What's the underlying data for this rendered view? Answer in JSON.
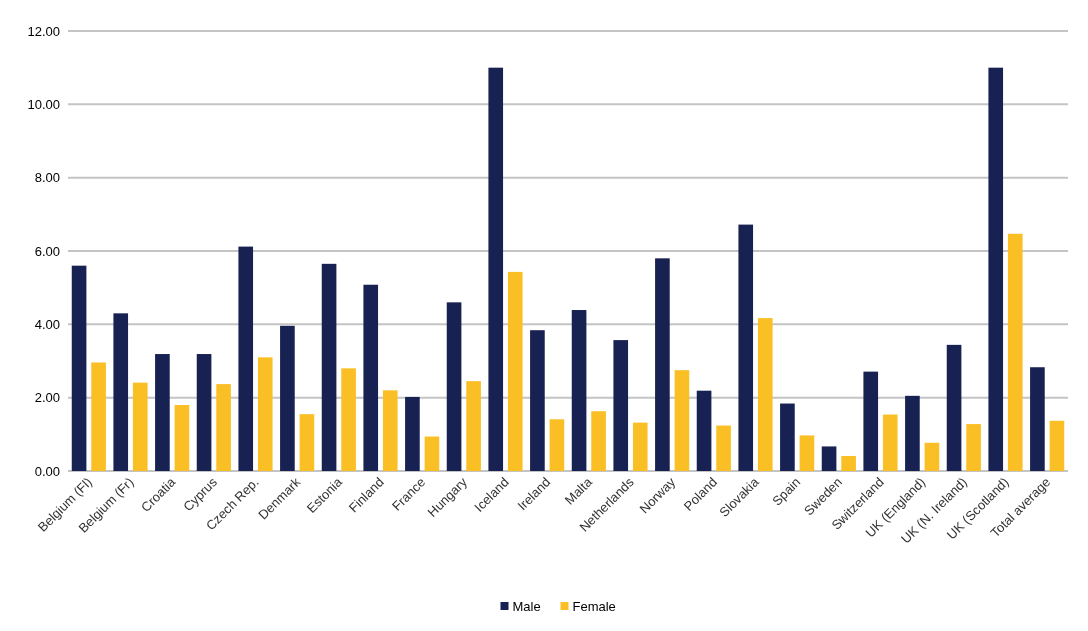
{
  "chart_data": {
    "type": "bar",
    "categories": [
      "Belgium (Fl)",
      "Belgium (Fr)",
      "Croatia",
      "Cyprus",
      "Czech Rep.",
      "Denmark",
      "Estonia",
      "Finland",
      "France",
      "Hungary",
      "Iceland",
      "Ireland",
      "Malta",
      "Netherlands",
      "Norway",
      "Poland",
      "Slovakia",
      "Spain",
      "Sweden",
      "Switzerland",
      "UK (England)",
      "UK (N. Ireland)",
      "UK (Scotland)",
      "Total average"
    ],
    "series": [
      {
        "name": "Male",
        "color": "#172152",
        "values": [
          5.6,
          4.3,
          3.19,
          3.19,
          6.12,
          3.96,
          5.65,
          5.08,
          2.02,
          4.6,
          11.0,
          3.84,
          4.39,
          3.57,
          5.8,
          2.19,
          6.72,
          1.84,
          0.67,
          2.71,
          2.05,
          3.44,
          11.0,
          2.83
        ]
      },
      {
        "name": "Female",
        "color": "#fbbf26",
        "values": [
          2.96,
          2.41,
          1.8,
          2.37,
          3.1,
          1.55,
          2.8,
          2.2,
          0.94,
          2.45,
          5.43,
          1.41,
          1.63,
          1.32,
          2.75,
          1.24,
          4.17,
          0.97,
          0.41,
          1.54,
          0.77,
          1.28,
          6.47,
          1.37
        ]
      }
    ],
    "ylim": [
      0,
      12
    ],
    "yticks": [
      {
        "value": 0,
        "label": "0.00"
      },
      {
        "value": 2,
        "label": "2.00"
      },
      {
        "value": 4,
        "label": "4.00"
      },
      {
        "value": 6,
        "label": "6.00"
      },
      {
        "value": 8,
        "label": "8.00"
      },
      {
        "value": 10,
        "label": "10.00"
      },
      {
        "value": 12,
        "label": "12.00"
      }
    ],
    "grid": "y",
    "legend": "bottom"
  }
}
